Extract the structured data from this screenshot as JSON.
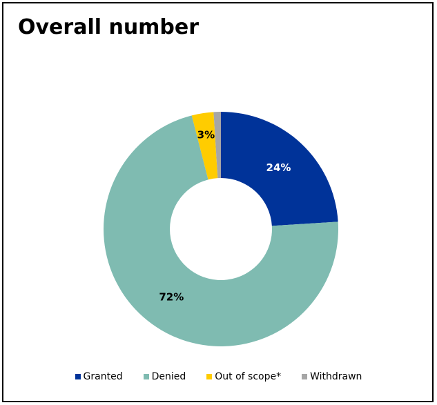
{
  "chart_data": {
    "type": "pie",
    "title": "Overall number",
    "categories": [
      "Granted",
      "Denied",
      "Out of scope*",
      "Withdrawn"
    ],
    "values": [
      24,
      72,
      3,
      1
    ],
    "labels": [
      "24%",
      "72%",
      "3%",
      ""
    ],
    "colors": [
      "#003399",
      "#7fbbb1",
      "#ffcc00",
      "#a6a6a6"
    ],
    "label_colors": [
      "#ffffff",
      "#000000",
      "#000000",
      "#000000"
    ],
    "donut": true,
    "legend_position": "bottom"
  }
}
